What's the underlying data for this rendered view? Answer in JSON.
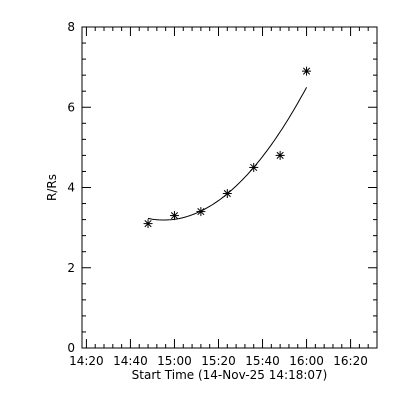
{
  "chart_data": {
    "type": "scatter",
    "title": "",
    "xlabel": "Start Time (14-Nov-25 14:18:07)",
    "ylabel": "R/Rs",
    "x_ticks": [
      "14:20",
      "14:40",
      "15:00",
      "15:20",
      "15:40",
      "16:00",
      "16:20"
    ],
    "x_tick_minutes_after_14_00": [
      20,
      40,
      60,
      80,
      100,
      120,
      140
    ],
    "xlim_minutes_after_14_00": [
      18,
      152
    ],
    "y_ticks": [
      "0",
      "2",
      "4",
      "6",
      "8"
    ],
    "ylim": [
      0,
      8
    ],
    "grid": false,
    "series": [
      {
        "name": "",
        "marker": "asterisk",
        "x_minutes_after_14_00": [
          48,
          60,
          72,
          84,
          96,
          108,
          120
        ],
        "y": [
          3.1,
          3.3,
          3.4,
          3.85,
          4.5,
          4.8,
          6.9
        ]
      }
    ],
    "fit": {
      "type": "polynomial",
      "x_start_minutes_after_14_00": 48,
      "x_end_minutes_after_14_00": 120,
      "coefficients_about_t0_minutes": {
        "t0": 48,
        "c0": 3.23,
        "c1": -0.0113,
        "c2": 0.000787
      }
    }
  }
}
